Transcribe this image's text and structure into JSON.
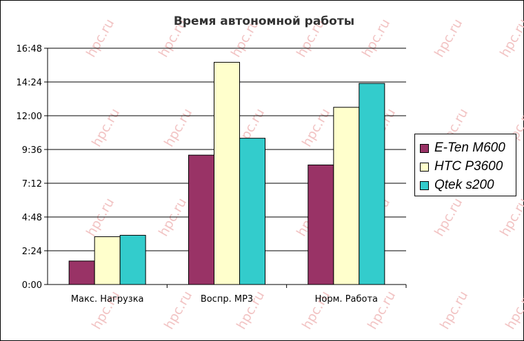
{
  "chart_data": {
    "type": "bar",
    "title": "Время автономной работы",
    "categories": [
      "Макс. Нагрузка",
      "Воспр. MP3",
      "Норм. Работа"
    ],
    "y_ticks": [
      "0:00",
      "2:24",
      "4:48",
      "7:12",
      "9:36",
      "12:00",
      "14:24",
      "16:48"
    ],
    "y_unit": "hours",
    "ylim": [
      0,
      16.8
    ],
    "grid": true,
    "legend_position": "right",
    "series": [
      {
        "name": "E-Ten M600",
        "color": "#993366",
        "values": [
          1.67,
          9.2,
          8.5
        ]
      },
      {
        "name": "HTC P3600",
        "color": "#ffffcc",
        "values": [
          3.4,
          15.8,
          12.6
        ]
      },
      {
        "name": "Qtek s200",
        "color": "#33cccc",
        "values": [
          3.5,
          10.4,
          14.3
        ]
      }
    ]
  },
  "watermark": "hpc.ru"
}
